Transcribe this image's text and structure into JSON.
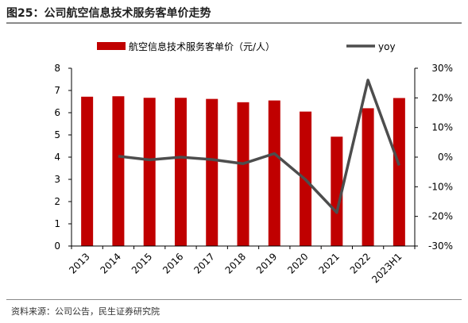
{
  "figure": {
    "title": "图25：公司航空信息技术服务客单价走势",
    "source": "资料来源：公司公告，民生证券研究院"
  },
  "chart_data": {
    "type": "bar",
    "categories": [
      "2013",
      "2014",
      "2015",
      "2016",
      "2017",
      "2018",
      "2019",
      "2020",
      "2021",
      "2022",
      "2023H1"
    ],
    "series": [
      {
        "name": "航空信息技术服务客单价（元/人）",
        "type": "bar",
        "axis": "left",
        "color": "#c00000",
        "values": [
          6.72,
          6.74,
          6.67,
          6.67,
          6.62,
          6.47,
          6.55,
          6.05,
          4.92,
          6.2,
          6.66
        ]
      },
      {
        "name": "yoy",
        "type": "line",
        "axis": "right",
        "color": "#4d4d4d",
        "values": [
          null,
          0.3,
          -0.9,
          0.0,
          -0.8,
          -2.2,
          1.2,
          -7.6,
          -18.7,
          26.0,
          -2.8
        ]
      }
    ],
    "y_left": {
      "min": 0,
      "max": 8,
      "ticks": [
        "0",
        "1",
        "2",
        "3",
        "4",
        "5",
        "6",
        "7",
        "8"
      ]
    },
    "y_right": {
      "min": -30,
      "max": 30,
      "ticks": [
        "-30%",
        "-20%",
        "-10%",
        "0%",
        "10%",
        "20%",
        "30%"
      ]
    },
    "legend_position": "top",
    "grid": false
  }
}
